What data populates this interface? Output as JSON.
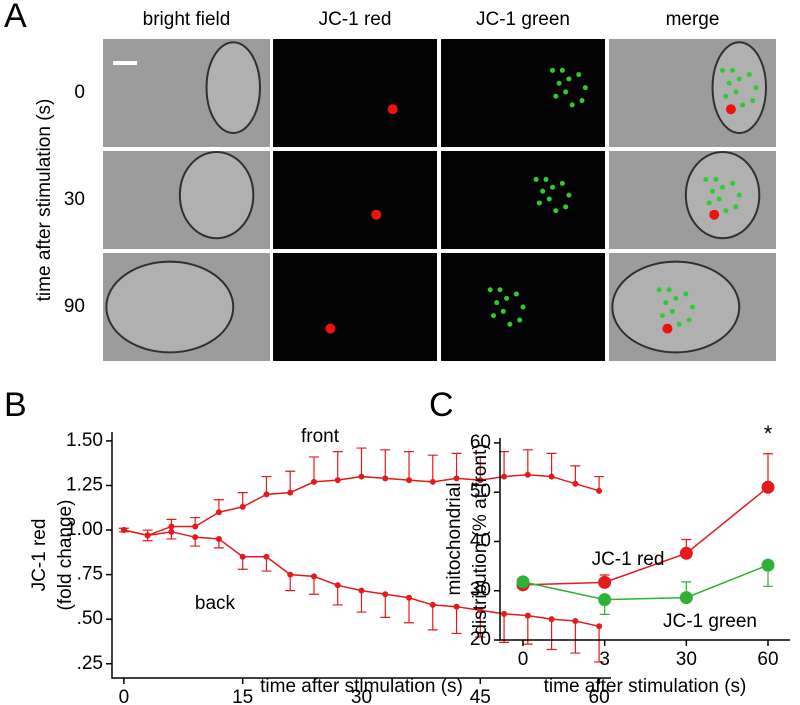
{
  "panel_a": {
    "label": "A",
    "columns": [
      "bright field",
      "JC-1 red",
      "JC-1 green",
      "merge"
    ],
    "rows": [
      "0",
      "30",
      "90"
    ],
    "row_axis_label": "time after stimulation (s)"
  },
  "chart_data": [
    {
      "type": "line",
      "panel_label": "B",
      "y_label": [
        "JC-1 red",
        "(fold change)"
      ],
      "x_label": "time after stimulation (s)",
      "x": [
        0,
        3,
        6,
        9,
        12,
        15,
        18,
        21,
        24,
        27,
        30,
        33,
        36,
        39,
        42,
        45,
        48,
        51,
        54,
        57,
        60
      ],
      "series": [
        {
          "name": "front",
          "color": "#e41a1c",
          "error_side": "up",
          "values": [
            1.0,
            0.97,
            1.02,
            1.02,
            1.1,
            1.13,
            1.2,
            1.21,
            1.27,
            1.28,
            1.3,
            1.29,
            1.28,
            1.27,
            1.29,
            1.28,
            1.3,
            1.31,
            1.3,
            1.26,
            1.22
          ],
          "errors": [
            0.01,
            0.03,
            0.04,
            0.05,
            0.07,
            0.08,
            0.1,
            0.12,
            0.14,
            0.16,
            0.16,
            0.16,
            0.16,
            0.15,
            0.14,
            0.13,
            0.14,
            0.14,
            0.13,
            0.1,
            0.08
          ]
        },
        {
          "name": "back",
          "color": "#e41a1c",
          "error_side": "down",
          "values": [
            1.0,
            0.97,
            0.99,
            0.96,
            0.95,
            0.85,
            0.85,
            0.75,
            0.74,
            0.69,
            0.66,
            0.64,
            0.62,
            0.58,
            0.57,
            0.55,
            0.53,
            0.52,
            0.5,
            0.49,
            0.46
          ],
          "errors": [
            0.01,
            0.03,
            0.04,
            0.05,
            0.05,
            0.07,
            0.08,
            0.09,
            0.1,
            0.11,
            0.12,
            0.13,
            0.14,
            0.14,
            0.15,
            0.15,
            0.16,
            0.16,
            0.17,
            0.18,
            0.2
          ]
        }
      ],
      "xlim": [
        -1.5,
        61.5
      ],
      "xticks": [
        0,
        15,
        30,
        45,
        60
      ],
      "ylim": [
        0.17,
        1.55
      ],
      "yticks": [
        {
          "value": 0.25,
          "label": ".25"
        },
        {
          "value": 0.5,
          "label": ".50"
        },
        {
          "value": 0.75,
          "label": ".75"
        },
        {
          "value": 1,
          "label": "1.00"
        },
        {
          "value": 1.25,
          "label": "1.25"
        },
        {
          "value": 1.5,
          "label": "1.50"
        }
      ]
    },
    {
      "type": "line",
      "panel_label": "C",
      "y_label": [
        "mitochondrial",
        "distribution (% at front)"
      ],
      "x_label": "time after stimulation (s)",
      "categories": [
        "0",
        "3",
        "30",
        "60"
      ],
      "series": [
        {
          "name": "JC-1 red",
          "color": "#e41a1c",
          "values": [
            31.2,
            31.7,
            37.6,
            51.0
          ],
          "errors": [
            0.5,
            1.5,
            2.8,
            6.8
          ],
          "error_sides": [
            "up",
            "up",
            "up",
            "up"
          ]
        },
        {
          "name": "JC-1 green",
          "color": "#2eb135",
          "values": [
            31.8,
            28.2,
            28.6,
            35.2
          ],
          "errors": [
            0.5,
            3.0,
            3.2,
            4.3
          ],
          "error_sides": [
            "down",
            "down",
            "up",
            "down"
          ]
        }
      ],
      "annotation": "*",
      "ylim": [
        20,
        61
      ],
      "yticks": [
        20,
        30,
        40,
        50,
        60
      ]
    }
  ]
}
